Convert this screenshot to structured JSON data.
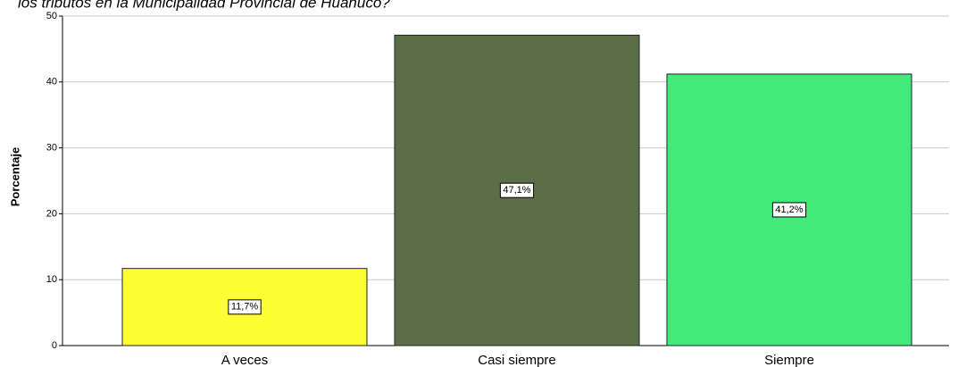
{
  "chart_data": {
    "type": "bar",
    "title": "los tributos en la Municipalidad Provincial de Huánuco?",
    "y_label": "Porcentaje",
    "categories": [
      "A veces",
      "Casi siempre",
      "Siempre"
    ],
    "values": [
      11.7,
      47.1,
      41.2
    ],
    "value_labels": [
      "11,7%",
      "47,1%",
      "41,2%"
    ],
    "colors": [
      "#ffff33",
      "#5c6e47",
      "#42e97b"
    ],
    "ylim": [
      0,
      50
    ],
    "yticks": [
      0,
      10,
      20,
      30,
      40,
      50
    ],
    "grid": true
  }
}
